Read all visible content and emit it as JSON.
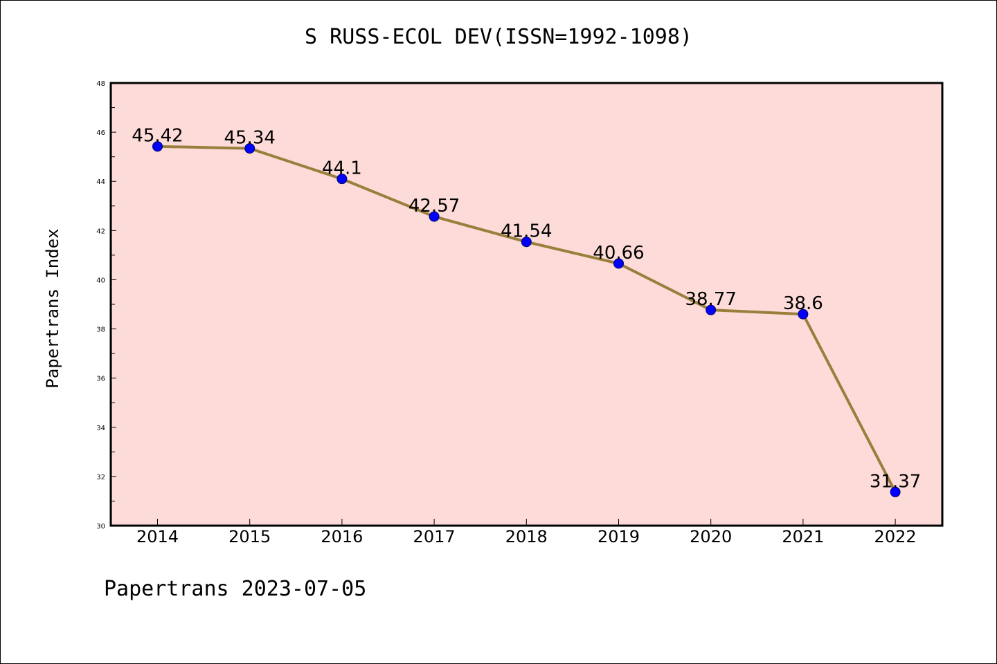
{
  "chart_data": {
    "type": "line",
    "title": "S RUSS-ECOL DEV(ISSN=1992-1098)",
    "xlabel": "",
    "ylabel": "Papertrans Index",
    "categories": [
      "2014",
      "2015",
      "2016",
      "2017",
      "2018",
      "2019",
      "2020",
      "2021",
      "2022"
    ],
    "series": [
      {
        "values": [
          45.42,
          45.34,
          44.1,
          42.57,
          41.54,
          40.66,
          38.77,
          38.6,
          31.37
        ],
        "labels": [
          "45.42",
          "45.34",
          "44.1",
          "42.57",
          "41.54",
          "40.66",
          "38.77",
          "38.6",
          "31.37"
        ]
      }
    ],
    "ylim": [
      30,
      48
    ],
    "yticks": [
      "30",
      "32",
      "34",
      "36",
      "38",
      "40",
      "42",
      "44",
      "46",
      "48"
    ],
    "grid": false,
    "colors": {
      "plot_background": "#fddbd9",
      "line": "#9a7f3c",
      "marker_fill": "#0000ff",
      "marker_stroke": "#000066"
    }
  },
  "footer": "Papertrans 2023-07-05"
}
